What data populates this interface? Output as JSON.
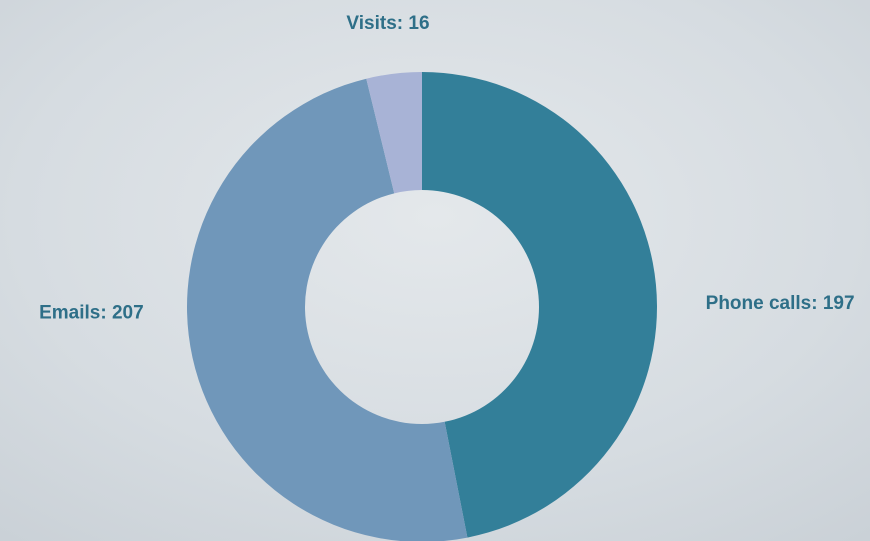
{
  "chart_data": {
    "type": "donut",
    "values": [
      197,
      207,
      16
    ],
    "value_labels": [
      "Phone calls: 197",
      "Emails: 207",
      "Visits: 16"
    ],
    "colors": [
      "#337f99",
      "#7097ba",
      "#a8b3d6"
    ]
  }
}
